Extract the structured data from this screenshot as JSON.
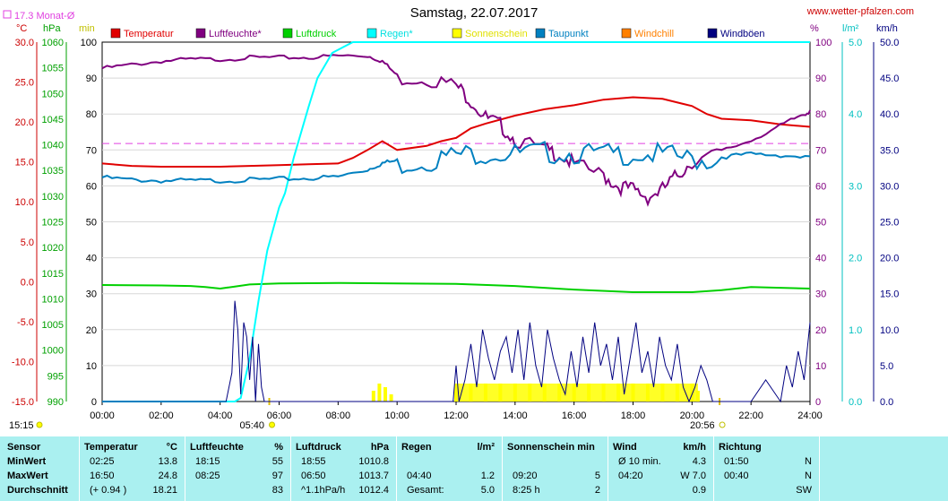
{
  "header": {
    "title": "Samstag, 22.07.2017",
    "site": "www.wetter-pfalzen.com",
    "month_avg": "17.3 Monat-Ø"
  },
  "axes": {
    "temp_unit": "°C",
    "press_unit": "hPa",
    "sun_unit": "min",
    "hum_unit": "%",
    "rain_unit": "l/m²",
    "wind_unit": "km/h",
    "temp_ticks": [
      "30.0",
      "25.0",
      "20.0",
      "15.0",
      "10.0",
      "5.0",
      "0.0",
      "-5.0",
      "-10.0",
      "-15.0"
    ],
    "press_ticks": [
      "1060",
      "1055",
      "1050",
      "1045",
      "1040",
      "1035",
      "1030",
      "1025",
      "1020",
      "1015",
      "1010",
      "1005",
      "1000",
      "995",
      "990"
    ],
    "sun_ticks": [
      "100",
      "90",
      "80",
      "70",
      "60",
      "50",
      "40",
      "30",
      "20",
      "10",
      "0"
    ],
    "hum_ticks": [
      "100",
      "90",
      "80",
      "70",
      "60",
      "50",
      "40",
      "30",
      "20",
      "10",
      "0"
    ],
    "rain_ticks": [
      "5.0",
      "4.0",
      "3.0",
      "2.0",
      "1.0",
      "0.0"
    ],
    "wind_ticks": [
      "50.0",
      "45.0",
      "40.0",
      "35.0",
      "30.0",
      "25.0",
      "20.0",
      "15.0",
      "10.0",
      "5.0",
      "0.0"
    ],
    "time_ticks": [
      "00:00",
      "02:00",
      "04:00",
      "06:00",
      "08:00",
      "10:00",
      "12:00",
      "14:00",
      "16:00",
      "18:00",
      "20:00",
      "22:00",
      "24:00"
    ],
    "sunrise": "05:40",
    "sunset": "20:56",
    "daylength": "15:15"
  },
  "legend": [
    {
      "label": "Temperatur",
      "color": "#e00000"
    },
    {
      "label": "Luftfeuchte*",
      "color": "#800080"
    },
    {
      "label": "Luftdruck",
      "color": "#00d000"
    },
    {
      "label": "Regen*",
      "color": "#00ffff"
    },
    {
      "label": "Sonnenschein",
      "color": "#ffff00"
    },
    {
      "label": "Taupunkt",
      "color": "#0080c0"
    },
    {
      "label": "Windchill",
      "color": "#ff8000"
    },
    {
      "label": "Windböen",
      "color": "#000080"
    }
  ],
  "chart_data": {
    "type": "line",
    "x_range": [
      0,
      24
    ],
    "month_avg_temp": 17.3,
    "series": [
      {
        "name": "Temperatur",
        "unit": "°C",
        "color": "#e00000",
        "x": [
          0,
          1,
          2,
          3,
          4,
          5,
          6,
          7,
          8,
          8.5,
          9,
          9.5,
          10,
          11,
          11.5,
          12,
          12.5,
          13,
          14,
          15,
          16,
          17,
          18,
          19,
          20,
          20.5,
          21,
          22,
          23,
          24
        ],
        "y": [
          14.8,
          14.5,
          14.4,
          14.4,
          14.4,
          14.5,
          14.6,
          14.7,
          14.8,
          15.5,
          16.5,
          17.6,
          16.5,
          17.0,
          17.6,
          18.0,
          19.2,
          19.8,
          20.8,
          21.6,
          22.1,
          22.8,
          23.1,
          22.9,
          22.0,
          21.0,
          20.4,
          20.2,
          19.7,
          19.4
        ]
      },
      {
        "name": "Luftfeuchte*",
        "unit": "%",
        "color": "#800080",
        "x": [
          0,
          1,
          2,
          3,
          4,
          5,
          6,
          7,
          8,
          9,
          9.5,
          10,
          11,
          12,
          12.5,
          13,
          13.5,
          14,
          15,
          15.5,
          16,
          17,
          17.5,
          18,
          18.5,
          19,
          19.5,
          20,
          21,
          22,
          23,
          23.7,
          24
        ],
        "y": [
          93,
          94,
          95,
          95.5,
          95.5,
          96,
          96,
          96,
          96.5,
          96.5,
          95,
          91,
          91,
          89,
          85,
          80,
          78,
          74,
          71,
          70,
          67,
          64,
          61,
          60,
          58,
          60,
          64,
          68,
          70,
          73,
          77,
          80,
          81
        ]
      },
      {
        "name": "Luftdruck",
        "unit": "hPa",
        "color": "#00d000",
        "x": [
          0,
          2,
          3,
          3.5,
          4,
          4.5,
          5,
          6,
          8,
          10,
          12,
          14,
          16,
          18,
          20,
          21,
          22,
          24
        ],
        "y": [
          1012.7,
          1012.6,
          1012.5,
          1012.3,
          1012.0,
          1012.4,
          1012.8,
          1013.0,
          1013.1,
          1013.0,
          1012.9,
          1012.5,
          1011.8,
          1011.3,
          1011.3,
          1011.7,
          1012.3,
          1012.0
        ]
      },
      {
        "name": "Regen*",
        "unit": "l/m²",
        "color": "#00ffff",
        "x": [
          0,
          3,
          4,
          4.5,
          4.7,
          5.0,
          5.3,
          5.6,
          6.0,
          6.2,
          6.5,
          7.0,
          7.3,
          7.8,
          8.5,
          9,
          24
        ],
        "y": [
          0,
          0,
          0,
          0,
          0.05,
          0.6,
          1.4,
          2.1,
          2.7,
          2.9,
          3.4,
          4.1,
          4.5,
          4.85,
          5.0,
          5.0,
          5.0
        ]
      },
      {
        "name": "Taupunkt",
        "unit": "°C",
        "color": "#0080c0",
        "x": [
          0,
          1,
          2,
          3,
          4,
          5,
          6,
          7,
          8,
          9,
          9.5,
          10,
          11,
          12,
          13,
          14,
          15,
          16,
          17,
          18,
          19,
          20,
          21,
          22,
          23,
          24
        ],
        "y": [
          13.2,
          12.9,
          12.8,
          12.8,
          12.8,
          12.9,
          13.0,
          13.1,
          13.3,
          14.2,
          15.0,
          15.3,
          15.8,
          16.6,
          16.8,
          16.7,
          16.9,
          16.8,
          16.6,
          16.7,
          16.6,
          16.0,
          15.8,
          16.1,
          16.0,
          15.7
        ]
      },
      {
        "name": "Windböen",
        "unit": "km/h",
        "color": "#000080",
        "x": [
          0,
          4.2,
          4.4,
          4.5,
          4.6,
          4.7,
          4.8,
          4.9,
          5.0,
          5.1,
          5.2,
          5.3,
          5.4,
          5.5,
          5.6,
          5.7,
          5.8,
          5.9,
          6.0,
          11.9,
          12.0,
          12.1,
          12.3,
          12.5,
          12.7,
          12.9,
          13.1,
          13.3,
          13.5,
          13.7,
          13.9,
          14.1,
          14.3,
          14.5,
          14.7,
          14.9,
          15.1,
          15.3,
          15.5,
          15.7,
          15.9,
          16.1,
          16.3,
          16.5,
          16.7,
          16.9,
          17.1,
          17.3,
          17.5,
          17.7,
          17.9,
          18.1,
          18.3,
          18.5,
          18.7,
          18.9,
          19.1,
          19.3,
          19.5,
          19.7,
          19.9,
          20.1,
          20.3,
          20.5,
          20.7,
          21.0,
          21.5,
          22.0,
          22.5,
          23.0,
          23.2,
          23.4,
          23.6,
          23.8,
          24
        ],
        "y": [
          0,
          0,
          4,
          14,
          10,
          1,
          11,
          9,
          3,
          9,
          0,
          8,
          2,
          0,
          0,
          0,
          0,
          0,
          0,
          0,
          5,
          0,
          3,
          8,
          2,
          10,
          6,
          3,
          7,
          9,
          4,
          10,
          3,
          11,
          5,
          2,
          10,
          6,
          3,
          1,
          7,
          2,
          9,
          4,
          11,
          5,
          8,
          3,
          9,
          1,
          6,
          11,
          4,
          7,
          2,
          9,
          5,
          3,
          8,
          2,
          0,
          2,
          5,
          3,
          0,
          0,
          0,
          0,
          3,
          0,
          5,
          2,
          7,
          3,
          11
        ]
      },
      {
        "name": "Sonnenschein",
        "unit": "min",
        "color": "#ffff00",
        "x": [
          9.2,
          9.4,
          9.6,
          9.8,
          12.0,
          12.5,
          13,
          13.5,
          14,
          14.5,
          15,
          15.5,
          16,
          16.5,
          17,
          17.5,
          18,
          18.5,
          19,
          19.5,
          20,
          20.2
        ],
        "y": [
          3,
          5,
          4,
          2,
          5,
          5,
          5,
          5,
          5,
          5,
          5,
          5,
          5,
          5,
          5,
          5,
          5,
          5,
          5,
          5,
          5,
          3
        ]
      }
    ]
  },
  "stats": {
    "sensor": {
      "header": "Sensor",
      "rows": [
        "MinWert",
        "MaxWert",
        "Durchschnitt"
      ]
    },
    "temperatur": {
      "header": "Temperatur",
      "unit": "°C",
      "rows": [
        {
          "label": "02:25",
          "value": "13.8"
        },
        {
          "label": "16:50",
          "value": "24.8"
        },
        {
          "label": "(+ 0.94 )",
          "value": "18.21"
        }
      ]
    },
    "luftfeuchte": {
      "header": "Luftfeuchte",
      "unit": "%",
      "rows": [
        {
          "label": "18:15",
          "value": "55"
        },
        {
          "label": "08:25",
          "value": "97"
        },
        {
          "label": "",
          "value": "83"
        }
      ]
    },
    "luftdruck": {
      "header": "Luftdruck",
      "unit": "hPa",
      "rows": [
        {
          "label": "18:55",
          "value": "1010.8"
        },
        {
          "label": "06:50",
          "value": "1013.7"
        },
        {
          "label": "^1.1hPa/h",
          "value": "1012.4"
        }
      ]
    },
    "regen": {
      "header": "Regen",
      "unit": "l/m²",
      "rows": [
        {
          "label": "",
          "value": ""
        },
        {
          "label": "04:40",
          "value": "1.2"
        },
        {
          "label": "Gesamt:",
          "value": "5.0"
        }
      ]
    },
    "sonnenschein": {
      "header": "Sonnenschein min",
      "unit": "",
      "rows": [
        {
          "label": "",
          "value": ""
        },
        {
          "label": "09:20",
          "value": "5"
        },
        {
          "label": "8:25 h",
          "value": "2"
        }
      ]
    },
    "wind": {
      "header": "Wind",
      "unit": "km/h",
      "rows": [
        {
          "label": "Ø 10 min.",
          "value": "4.3"
        },
        {
          "label": "04:20",
          "value": "W 7.0"
        },
        {
          "label": "",
          "value": "0.9"
        }
      ]
    },
    "richtung": {
      "header": "Richtung",
      "unit": "",
      "rows": [
        {
          "label": "01:50",
          "value": "N"
        },
        {
          "label": "00:40",
          "value": "N"
        },
        {
          "label": "",
          "value": "SW"
        }
      ]
    }
  }
}
